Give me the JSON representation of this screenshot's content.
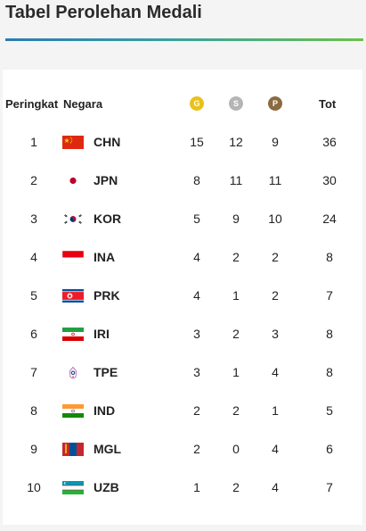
{
  "title": "Tabel Perolehan Medali",
  "headers": {
    "rank": "Peringkat",
    "country": "Negara",
    "gold": "G",
    "silver": "S",
    "bronze": "P",
    "total": "Tot"
  },
  "colors": {
    "gold": "#e8c11c",
    "silver": "#b5b5b5",
    "bronze": "#8b6a40",
    "accent_start": "#2a7bb5",
    "accent_end": "#6cc04a"
  },
  "rows": [
    {
      "rank": "1",
      "code": "CHN",
      "flag": "china-flag-icon",
      "gold": "15",
      "silver": "12",
      "bronze": "9",
      "total": "36"
    },
    {
      "rank": "2",
      "code": "JPN",
      "flag": "japan-flag-icon",
      "gold": "8",
      "silver": "11",
      "bronze": "11",
      "total": "30"
    },
    {
      "rank": "3",
      "code": "KOR",
      "flag": "korea-flag-icon",
      "gold": "5",
      "silver": "9",
      "bronze": "10",
      "total": "24"
    },
    {
      "rank": "4",
      "code": "INA",
      "flag": "indonesia-flag-icon",
      "gold": "4",
      "silver": "2",
      "bronze": "2",
      "total": "8"
    },
    {
      "rank": "5",
      "code": "PRK",
      "flag": "north-korea-flag-icon",
      "gold": "4",
      "silver": "1",
      "bronze": "2",
      "total": "7"
    },
    {
      "rank": "6",
      "code": "IRI",
      "flag": "iran-flag-icon",
      "gold": "3",
      "silver": "2",
      "bronze": "3",
      "total": "8"
    },
    {
      "rank": "7",
      "code": "TPE",
      "flag": "chinese-taipei-flag-icon",
      "gold": "3",
      "silver": "1",
      "bronze": "4",
      "total": "8"
    },
    {
      "rank": "8",
      "code": "IND",
      "flag": "india-flag-icon",
      "gold": "2",
      "silver": "2",
      "bronze": "1",
      "total": "5"
    },
    {
      "rank": "9",
      "code": "MGL",
      "flag": "mongolia-flag-icon",
      "gold": "2",
      "silver": "0",
      "bronze": "4",
      "total": "6"
    },
    {
      "rank": "10",
      "code": "UZB",
      "flag": "uzbekistan-flag-icon",
      "gold": "1",
      "silver": "2",
      "bronze": "4",
      "total": "7"
    }
  ]
}
